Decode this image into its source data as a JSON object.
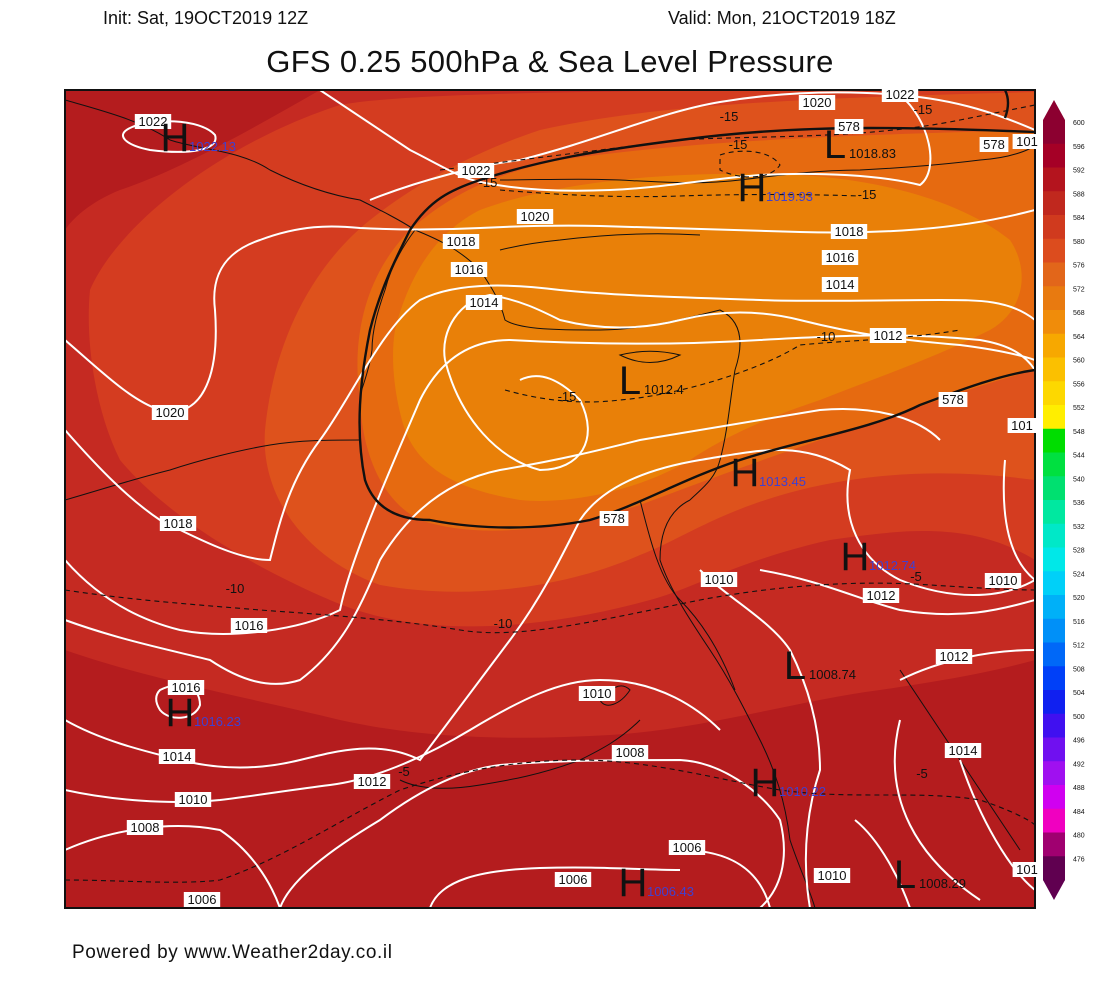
{
  "header": {
    "init": "Init: Sat, 19OCT2019 12Z",
    "valid": "Valid: Mon, 21OCT2019 18Z",
    "title": "GFS 0.25 500hPa & Sea Level Pressure"
  },
  "footer": "Powered by www.Weather2day.co.il",
  "colorbar": {
    "levels": [
      "600",
      "596",
      "592",
      "588",
      "584",
      "580",
      "576",
      "572",
      "568",
      "564",
      "560",
      "556",
      "552",
      "548",
      "544",
      "540",
      "536",
      "532",
      "528",
      "524",
      "520",
      "516",
      "512",
      "508",
      "504",
      "500",
      "496",
      "492",
      "488",
      "484",
      "480",
      "476"
    ],
    "colors": [
      "#8c0030",
      "#a50026",
      "#b4141e",
      "#c0281e",
      "#d03a1e",
      "#dc4c1e",
      "#e2661a",
      "#e87a10",
      "#f08c0a",
      "#f7a800",
      "#fbc000",
      "#fdd800",
      "#ffee00",
      "#00dd00",
      "#00e040",
      "#00e070",
      "#00e8a0",
      "#00e8c8",
      "#00e8e8",
      "#00d0f8",
      "#00b0f8",
      "#0090f8",
      "#0068f8",
      "#0040f8",
      "#1020f0",
      "#4010f0",
      "#7010f0",
      "#a010f0",
      "#d000f0",
      "#f000c0",
      "#a00070",
      "#600050"
    ]
  },
  "map": {
    "colors": {
      "c592": "#b41c1e",
      "c588": "#c52a22",
      "c584": "#d43c20",
      "c580": "#de521c",
      "c576": "#e66a10",
      "c572": "#e98008"
    },
    "isobar_labels": [
      {
        "text": "1022"
      },
      {
        "text": "1022"
      },
      {
        "text": "1022"
      },
      {
        "text": "1020"
      },
      {
        "text": "1020"
      },
      {
        "text": "1020"
      },
      {
        "text": "1018"
      },
      {
        "text": "1018"
      },
      {
        "text": "1018"
      },
      {
        "text": "1016"
      },
      {
        "text": "1016"
      },
      {
        "text": "1016"
      },
      {
        "text": "1016"
      },
      {
        "text": "1014"
      },
      {
        "text": "1014"
      },
      {
        "text": "1014"
      },
      {
        "text": "1014"
      },
      {
        "text": "1012"
      },
      {
        "text": "1012"
      },
      {
        "text": "1012"
      },
      {
        "text": "1012"
      },
      {
        "text": "1010"
      },
      {
        "text": "1010"
      },
      {
        "text": "1010"
      },
      {
        "text": "1010"
      },
      {
        "text": "1010"
      },
      {
        "text": "1008"
      },
      {
        "text": "1008"
      },
      {
        "text": "1006"
      },
      {
        "text": "1006"
      },
      {
        "text": "1006"
      },
      {
        "text": "578"
      },
      {
        "text": "578"
      },
      {
        "text": "578"
      },
      {
        "text": "578"
      },
      {
        "text": "101"
      },
      {
        "text": "101"
      },
      {
        "text": "101"
      }
    ],
    "temp_labels": [
      "-15",
      "-15",
      "-15",
      "-15",
      "-15",
      "-15",
      "-10",
      "-10",
      "-10",
      "-5",
      "-5",
      "-5"
    ],
    "centers": [
      {
        "type": "H",
        "value": "1022.13"
      },
      {
        "type": "L",
        "value": "1018.83"
      },
      {
        "type": "H",
        "value": "1019.93"
      },
      {
        "type": "L",
        "value": "1012.4"
      },
      {
        "type": "H",
        "value": "1013.45"
      },
      {
        "type": "H",
        "value": "1012.74"
      },
      {
        "type": "L",
        "value": "1008.74"
      },
      {
        "type": "H",
        "value": "1016.23"
      },
      {
        "type": "H",
        "value": "1010.22"
      },
      {
        "type": "H",
        "value": "1006.43"
      },
      {
        "type": "L",
        "value": "1008.29"
      }
    ],
    "center_value_colors": {
      "H": "#4040d0",
      "L": "#111111"
    }
  }
}
